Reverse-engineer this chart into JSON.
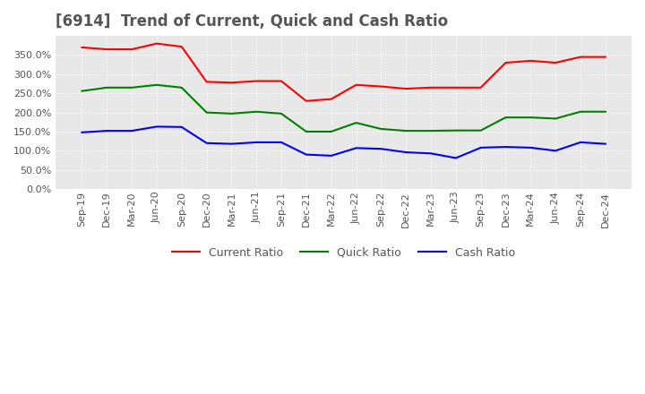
{
  "title": "[6914]  Trend of Current, Quick and Cash Ratio",
  "x_labels": [
    "Sep-19",
    "Dec-19",
    "Mar-20",
    "Jun-20",
    "Sep-20",
    "Dec-20",
    "Mar-21",
    "Jun-21",
    "Sep-21",
    "Dec-21",
    "Mar-22",
    "Jun-22",
    "Sep-22",
    "Dec-22",
    "Mar-23",
    "Jun-23",
    "Sep-23",
    "Dec-23",
    "Mar-24",
    "Jun-24",
    "Sep-24",
    "Dec-24"
  ],
  "current_ratio": [
    3.7,
    3.65,
    3.65,
    3.8,
    3.72,
    2.8,
    2.78,
    2.82,
    2.82,
    2.3,
    2.35,
    2.72,
    2.68,
    2.62,
    2.65,
    2.65,
    2.65,
    3.3,
    3.35,
    3.3,
    3.45,
    3.45
  ],
  "quick_ratio": [
    2.56,
    2.65,
    2.65,
    2.72,
    2.65,
    2.0,
    1.97,
    2.02,
    1.97,
    1.5,
    1.5,
    1.73,
    1.57,
    1.52,
    1.52,
    1.53,
    1.53,
    1.87,
    1.87,
    1.84,
    2.02,
    2.02
  ],
  "cash_ratio": [
    1.48,
    1.52,
    1.52,
    1.63,
    1.62,
    1.2,
    1.18,
    1.22,
    1.22,
    0.9,
    0.87,
    1.07,
    1.05,
    0.96,
    0.93,
    0.81,
    1.08,
    1.1,
    1.08,
    1.0,
    1.22,
    1.18
  ],
  "current_color": "#ff0000",
  "quick_color": "#008000",
  "cash_color": "#0000ff",
  "ylim_min": 0.0,
  "ylim_max": 4.0,
  "ytick_values": [
    0.0,
    0.5,
    1.0,
    1.5,
    2.0,
    2.5,
    3.0,
    3.5
  ],
  "ytick_labels": [
    "0.0%",
    "50.0%",
    "100.0%",
    "150.0%",
    "200.0%",
    "250.0%",
    "300.0%",
    "350.0%"
  ],
  "background_color": "#ffffff",
  "plot_bg_color": "#e8e8e8",
  "grid_color": "#ffffff",
  "grid_style": "dotted",
  "title_fontsize": 12,
  "tick_fontsize": 8,
  "legend_labels": [
    "Current Ratio",
    "Quick Ratio",
    "Cash Ratio"
  ],
  "line_width": 1.5
}
